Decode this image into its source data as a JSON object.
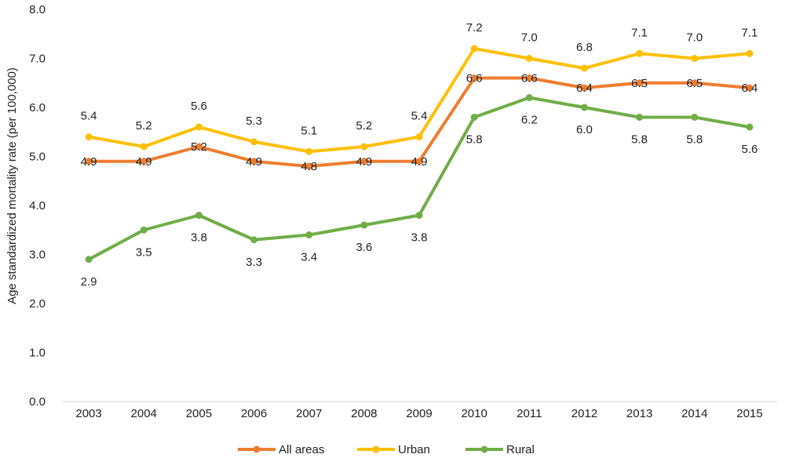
{
  "chart_data": {
    "type": "line",
    "title": "",
    "xlabel": "",
    "ylabel": "Age standardized mortality rate (per 100,000)",
    "ylim": [
      0,
      8
    ],
    "yticks": [
      "0.0",
      "1.0",
      "2.0",
      "3.0",
      "4.0",
      "5.0",
      "6.0",
      "7.0",
      "8.0"
    ],
    "categories": [
      "2003",
      "2004",
      "2005",
      "2006",
      "2007",
      "2008",
      "2009",
      "2010",
      "2011",
      "2012",
      "2013",
      "2014",
      "2015"
    ],
    "grid": false,
    "legend_position": "bottom",
    "series": [
      {
        "name": "All areas",
        "color": "#ED7D31",
        "values": [
          4.9,
          4.9,
          5.2,
          4.9,
          4.8,
          4.9,
          4.9,
          6.6,
          6.6,
          6.4,
          6.5,
          6.5,
          6.4
        ],
        "labels": [
          "4.9",
          "4.9",
          "5.2",
          "4.9",
          "4.8",
          "4.9",
          "4.9",
          "6.6",
          "6.6",
          "6.4",
          "6.5",
          "6.5",
          "6.4"
        ]
      },
      {
        "name": "Urban",
        "color": "#FFC000",
        "values": [
          5.4,
          5.2,
          5.6,
          5.3,
          5.1,
          5.2,
          5.4,
          7.2,
          7.0,
          6.8,
          7.1,
          7.0,
          7.1
        ],
        "labels": [
          "5.4",
          "5.2",
          "5.6",
          "5.3",
          "5.1",
          "5.2",
          "5.4",
          "7.2",
          "7.0",
          "6.8",
          "7.1",
          "7.0",
          "7.1"
        ]
      },
      {
        "name": "Rural",
        "color": "#70AD47",
        "values": [
          2.9,
          3.5,
          3.8,
          3.3,
          3.4,
          3.6,
          3.8,
          5.8,
          6.2,
          6.0,
          5.8,
          5.8,
          5.6
        ],
        "labels": [
          "2.9",
          "3.5",
          "3.8",
          "3.3",
          "3.4",
          "3.6",
          "3.8",
          "5.8",
          "6.2",
          "6.0",
          "5.8",
          "5.8",
          "5.6"
        ]
      }
    ]
  }
}
